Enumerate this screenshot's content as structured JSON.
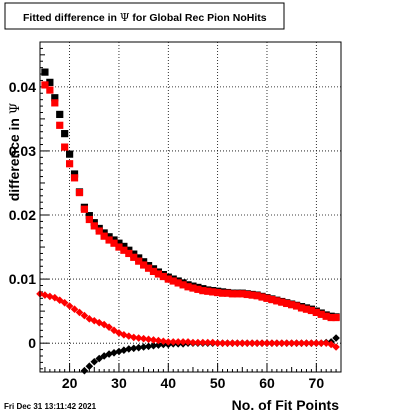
{
  "timestamp": "Fri Dec 31 13:11:42 2021",
  "chart_data": {
    "type": "scatter",
    "title_prefix": "Fitted difference in ",
    "title_symbol": "Ψ",
    "title_suffix": " for Global Rec Pion NoHits",
    "xlabel": "No. of Fit Points",
    "ylabel_prefix": "difference in ",
    "ylabel_symbol": "Ψ",
    "xlim": [
      14,
      75
    ],
    "ylim": [
      -0.0045,
      0.047
    ],
    "xticks": [
      20,
      30,
      40,
      50,
      60,
      70
    ],
    "yticks": [
      0,
      0.01,
      0.02,
      0.03,
      0.04
    ],
    "ytick_labels": [
      "0",
      "0.01",
      "0.02",
      "0.03",
      "0.04"
    ],
    "grid": true,
    "series": [
      {
        "marker": "square",
        "color": "#000000",
        "x": [
          15,
          16,
          17,
          18,
          19,
          20,
          21,
          22,
          23,
          24,
          25,
          26,
          27,
          28,
          29,
          30,
          31,
          32,
          33,
          34,
          35,
          36,
          37,
          38,
          39,
          40,
          41,
          42,
          43,
          44,
          45,
          46,
          47,
          48,
          49,
          50,
          51,
          52,
          53,
          54,
          55,
          56,
          57,
          58,
          59,
          60,
          61,
          62,
          63,
          64,
          65,
          66,
          67,
          68,
          69,
          70,
          71,
          72,
          73,
          74
        ],
        "values": [
          0.0423,
          0.0407,
          0.0383,
          0.0357,
          0.0327,
          0.0295,
          0.0264,
          0.0236,
          0.0212,
          0.0199,
          0.0188,
          0.0179,
          0.0172,
          0.0166,
          0.0161,
          0.0156,
          0.0151,
          0.0145,
          0.0139,
          0.0133,
          0.0127,
          0.0121,
          0.0116,
          0.0111,
          0.0107,
          0.0103,
          0.01,
          0.0097,
          0.0094,
          0.0091,
          0.0089,
          0.0087,
          0.0085,
          0.0083,
          0.0082,
          0.0081,
          0.008,
          0.0079,
          0.0078,
          0.0078,
          0.0078,
          0.0077,
          0.0076,
          0.0075,
          0.0073,
          0.0071,
          0.0069,
          0.0067,
          0.0065,
          0.0063,
          0.0061,
          0.0059,
          0.0057,
          0.0055,
          0.0053,
          0.005,
          0.0047,
          0.0044,
          0.0042,
          0.0041
        ]
      },
      {
        "marker": "square",
        "color": "#ff0000",
        "x": [
          15,
          16,
          17,
          18,
          19,
          20,
          21,
          22,
          23,
          24,
          25,
          26,
          27,
          28,
          29,
          30,
          31,
          32,
          33,
          34,
          35,
          36,
          37,
          38,
          39,
          40,
          41,
          42,
          43,
          44,
          45,
          46,
          47,
          48,
          49,
          50,
          51,
          52,
          53,
          54,
          55,
          56,
          57,
          58,
          59,
          60,
          61,
          62,
          63,
          64,
          65,
          66,
          67,
          68,
          69,
          70,
          71,
          72,
          73,
          74
        ],
        "values": [
          0.0403,
          0.0395,
          0.0375,
          0.034,
          0.0306,
          0.028,
          0.0258,
          0.0235,
          0.0209,
          0.0193,
          0.0183,
          0.0175,
          0.0167,
          0.0161,
          0.0156,
          0.015,
          0.0145,
          0.014,
          0.0134,
          0.0128,
          0.0122,
          0.0117,
          0.0112,
          0.0108,
          0.0104,
          0.01,
          0.0097,
          0.0094,
          0.0091,
          0.0088,
          0.0086,
          0.0084,
          0.0082,
          0.0081,
          0.008,
          0.0079,
          0.0078,
          0.0078,
          0.0077,
          0.0077,
          0.0077,
          0.0076,
          0.0075,
          0.0074,
          0.0072,
          0.007,
          0.0068,
          0.0066,
          0.0064,
          0.0062,
          0.006,
          0.0058,
          0.0055,
          0.0053,
          0.0051,
          0.0048,
          0.0045,
          0.0042,
          0.004,
          0.004
        ]
      },
      {
        "marker": "diamond",
        "color": "#000000",
        "x": [
          23,
          24,
          25,
          26,
          27,
          28,
          29,
          30,
          31,
          32,
          33,
          34,
          35,
          36,
          37,
          38,
          39,
          40,
          41,
          42,
          43,
          44,
          45,
          46,
          47,
          48,
          49,
          50,
          51,
          52,
          53,
          54,
          55,
          56,
          57,
          58,
          59,
          60,
          61,
          62,
          63,
          64,
          65,
          66,
          67,
          68,
          69,
          70,
          71,
          72,
          73,
          74
        ],
        "values": [
          -0.0043,
          -0.0036,
          -0.0029,
          -0.0024,
          -0.002,
          -0.0017,
          -0.0015,
          -0.0013,
          -0.0011,
          -0.0009,
          -0.0008,
          -0.0007,
          -0.0006,
          -0.0005,
          -0.0004,
          -0.0003,
          -0.0002,
          -0.0002,
          -0.0001,
          -0.0001,
          -0.0001,
          0.0,
          0.0,
          0.0,
          0.0,
          0.0,
          0.0,
          0.0,
          0.0,
          0.0,
          0.0,
          0.0,
          0.0,
          0.0,
          0.0,
          0.0,
          0.0,
          0.0,
          0.0,
          0.0,
          0.0,
          0.0,
          0.0,
          0.0,
          0.0,
          0.0,
          0.0,
          0.0,
          0.0,
          0.0001,
          0.0002,
          0.0008
        ]
      },
      {
        "marker": "diamond",
        "color": "#ff0000",
        "x": [
          14,
          15,
          16,
          17,
          18,
          19,
          20,
          21,
          22,
          23,
          24,
          25,
          26,
          27,
          28,
          29,
          30,
          31,
          32,
          33,
          34,
          35,
          36,
          37,
          38,
          39,
          40,
          41,
          42,
          43,
          44,
          45,
          46,
          47,
          48,
          49,
          50,
          51,
          52,
          53,
          54,
          55,
          56,
          57,
          58,
          59,
          60,
          61,
          62,
          63,
          64,
          65,
          66,
          67,
          68,
          69,
          70,
          71,
          72,
          73,
          74
        ],
        "values": [
          0.0077,
          0.0075,
          0.0073,
          0.0071,
          0.0067,
          0.0063,
          0.0058,
          0.0053,
          0.0048,
          0.0043,
          0.0038,
          0.0035,
          0.0032,
          0.0029,
          0.0025,
          0.002,
          0.0016,
          0.0013,
          0.0011,
          0.0009,
          0.0008,
          0.0007,
          0.0006,
          0.0005,
          0.0004,
          0.0003,
          0.0002,
          0.0002,
          0.0002,
          0.0002,
          0.0002,
          0.0001,
          0.0001,
          0.0001,
          0.0001,
          0.0001,
          0.0,
          0.0,
          0.0,
          0.0,
          0.0,
          0.0,
          0.0,
          0.0,
          0.0,
          0.0,
          0.0,
          0.0,
          0.0,
          0.0,
          0.0,
          0.0,
          0.0,
          0.0,
          0.0,
          0.0,
          0.0,
          0.0,
          0.0,
          -0.0002,
          -0.0006
        ]
      }
    ]
  }
}
